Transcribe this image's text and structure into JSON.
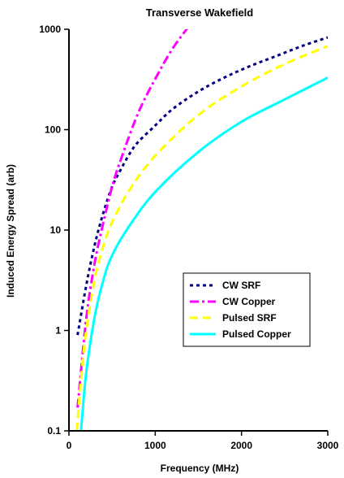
{
  "chart_data": {
    "type": "line",
    "title": "Transverse Wakefield",
    "xlabel": "Frequency (MHz)",
    "ylabel": "Induced Energy Spread (arb)",
    "xlim": [
      0,
      3000
    ],
    "ylim": [
      0.1,
      1000
    ],
    "yscale": "log",
    "x_ticks": [
      0,
      1000,
      2000,
      3000
    ],
    "x_tick_labels": [
      "0",
      "1000",
      "2000",
      "3000"
    ],
    "y_ticks": [
      0.1,
      1,
      10,
      100,
      1000
    ],
    "y_tick_labels": [
      "0.1",
      "1",
      "10",
      "100",
      "1000"
    ],
    "grid": false,
    "legend_position": "bottom-right",
    "series": [
      {
        "name": "CW SRF",
        "color": "#000080",
        "dash": "dotted",
        "x": [
          100,
          200,
          300,
          400,
          500,
          600,
          700,
          800,
          1000,
          1200,
          1500,
          1800,
          2100,
          2400,
          2700,
          3000
        ],
        "y": [
          0.9,
          2.8,
          7.2,
          15,
          27,
          40,
          57,
          75,
          110,
          160,
          240,
          330,
          430,
          540,
          680,
          830
        ]
      },
      {
        "name": "CW Copper",
        "color": "#FF00FF",
        "dash": "dashdot",
        "x": [
          100,
          200,
          300,
          400,
          500,
          600,
          800,
          1000,
          1200,
          1400
        ],
        "y": [
          0.17,
          1.3,
          4.8,
          12,
          27,
          50,
          145,
          320,
          640,
          1100
        ]
      },
      {
        "name": "Pulsed SRF",
        "color": "#FFFF00",
        "dash": "dashed",
        "x": [
          90,
          150,
          200,
          300,
          400,
          500,
          700,
          1000,
          1500,
          2000,
          2500,
          3000
        ],
        "y": [
          0.1,
          0.4,
          1,
          3.3,
          7,
          12,
          25,
          55,
          140,
          270,
          450,
          680
        ]
      },
      {
        "name": "Pulsed Copper",
        "color": "#00FFFF",
        "dash": "solid",
        "x": [
          140,
          200,
          300,
          400,
          500,
          700,
          1000,
          1500,
          2000,
          2500,
          3000
        ],
        "y": [
          0.1,
          0.38,
          1.4,
          3.2,
          5.6,
          11,
          24,
          60,
          120,
          200,
          330
        ]
      }
    ]
  }
}
